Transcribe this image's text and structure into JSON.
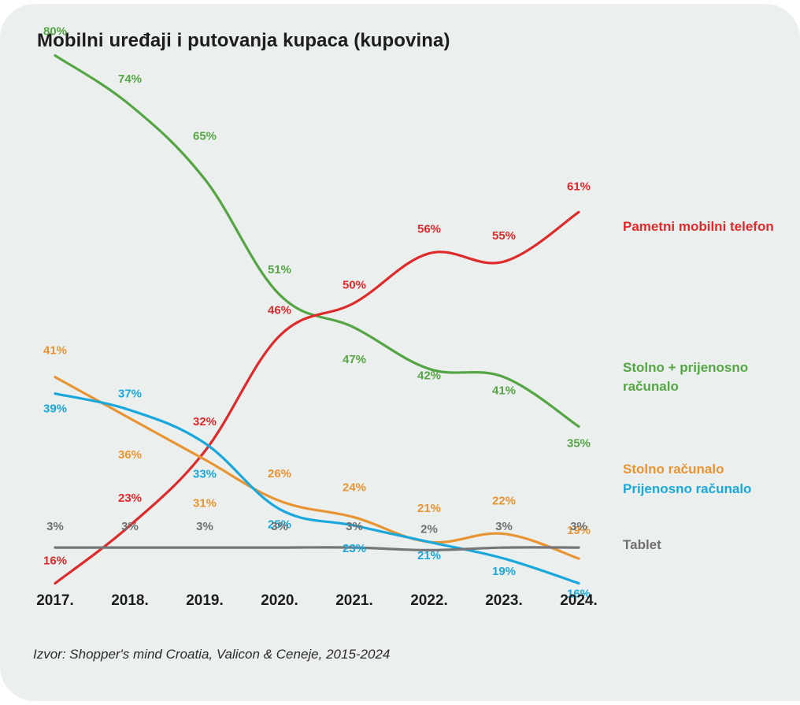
{
  "chart_data": {
    "type": "line",
    "title": "Mobilni uređaji i putovanja kupaca (kupovina)",
    "xlabel": "",
    "ylabel": "",
    "x": [
      "2017.",
      "2018.",
      "2019.",
      "2020.",
      "2021.",
      "2022.",
      "2023.",
      "2024."
    ],
    "ylim": [
      0,
      100
    ],
    "grid": false,
    "legend_placement": "right",
    "unit": "%",
    "series": [
      {
        "key": "smartphone",
        "name": "Pametni mobilni telefon",
        "color": "#de2a2a",
        "values": [
          16,
          23,
          32,
          46,
          50,
          56,
          55,
          61
        ]
      },
      {
        "key": "desktop_laptop",
        "name": "Stolno + prijenosno računalo",
        "name_lines": [
          "Stolno + prijenosno",
          "računalo"
        ],
        "color": "#55a544",
        "values": [
          80,
          74,
          65,
          51,
          47,
          42,
          41,
          35
        ]
      },
      {
        "key": "desktop",
        "name": "Stolno računalo",
        "color": "#e89432",
        "values": [
          41,
          36,
          31,
          26,
          24,
          21,
          22,
          19
        ]
      },
      {
        "key": "laptop",
        "name": "Prijenosno računalo",
        "color": "#1aa8dc",
        "values": [
          39,
          37,
          33,
          25,
          23,
          21,
          19,
          16
        ]
      },
      {
        "key": "tablet",
        "name": "Tablet",
        "color": "#747678",
        "values": [
          3,
          3,
          3,
          3,
          3,
          2,
          3,
          3
        ]
      }
    ],
    "source": "Izvor: Shopper's mind Croatia, Valicon & Ceneje, 2015-2024"
  }
}
